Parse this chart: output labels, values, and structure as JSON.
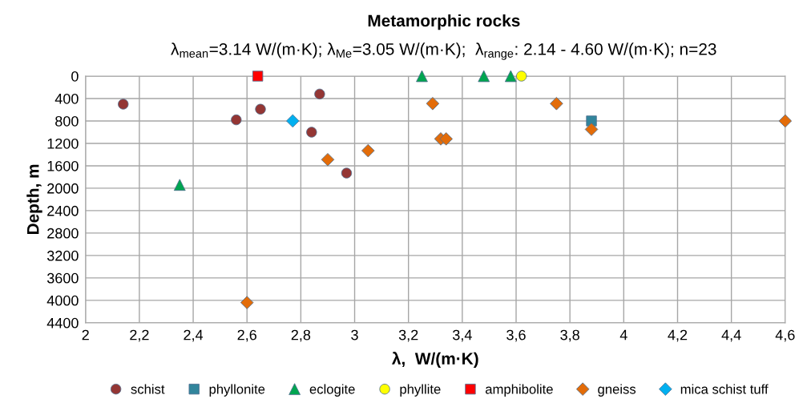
{
  "chart_data": {
    "type": "scatter",
    "title": "Metamorphic rocks",
    "subtitle": "λ$_{mean}$=3.14 W/(m·K); λ$_{Me}$=3.05 W/(m·K);  λ$_{range}$: 2.14 - 4.60 W/(m·K); n=23",
    "xlabel": "λ,  W/(m·K)",
    "ylabel": "Depth, m",
    "xlim": [
      2,
      4.6
    ],
    "ylim": [
      4400,
      0
    ],
    "xticks": [
      2,
      {
        "value": 2.2,
        "label": "2,2"
      },
      {
        "value": 2.4,
        "label": "2,4"
      },
      {
        "value": 2.6,
        "label": "2,6"
      },
      {
        "value": 2.8,
        "label": "2,8"
      },
      3,
      {
        "value": 3.2,
        "label": "3,2"
      },
      {
        "value": 3.4,
        "label": "3,4"
      },
      {
        "value": 3.6,
        "label": "3,6"
      },
      {
        "value": 3.8,
        "label": "3,8"
      },
      4,
      {
        "value": 4.2,
        "label": "4,2"
      },
      {
        "value": 4.4,
        "label": "4,4"
      },
      {
        "value": 4.6,
        "label": "4,6"
      }
    ],
    "yticks": [
      0,
      400,
      800,
      1200,
      1600,
      2000,
      2400,
      2800,
      3200,
      3600,
      4000,
      4400
    ],
    "grid": true,
    "legend": "bottom",
    "series": [
      {
        "name": "schist",
        "color": "#943634",
        "marker": "circle",
        "x": [
          2.14,
          2.56,
          2.65,
          2.87,
          2.84,
          2.97
        ],
        "values": [
          500,
          780,
          590,
          320,
          1000,
          1730
        ]
      },
      {
        "name": "phyllonite",
        "color": "#31859c",
        "marker": "square",
        "x": [
          3.88
        ],
        "values": [
          800
        ]
      },
      {
        "name": "eclogite",
        "color": "#00a550",
        "marker": "triangle",
        "x": [
          2.35,
          3.25,
          3.48,
          3.58
        ],
        "values": [
          1940,
          0,
          0,
          0
        ]
      },
      {
        "name": "phyllite",
        "color": "#ffff00",
        "marker": "circle",
        "x": [
          3.62
        ],
        "values": [
          0
        ]
      },
      {
        "name": "amphibolite",
        "color": "#ff0000",
        "marker": "square",
        "x": [
          2.64
        ],
        "values": [
          0
        ]
      },
      {
        "name": "gneiss",
        "color": "#e36c09",
        "marker": "diamond",
        "x": [
          2.9,
          3.05,
          3.29,
          3.32,
          3.34,
          3.75,
          3.88,
          4.6,
          2.6
        ],
        "values": [
          1490,
          1330,
          490,
          1120,
          1120,
          490,
          950,
          800,
          4040
        ]
      },
      {
        "name": "mica schist tuff",
        "color": "#00b0f0",
        "marker": "diamond",
        "x": [
          2.77
        ],
        "values": [
          800
        ]
      }
    ]
  }
}
